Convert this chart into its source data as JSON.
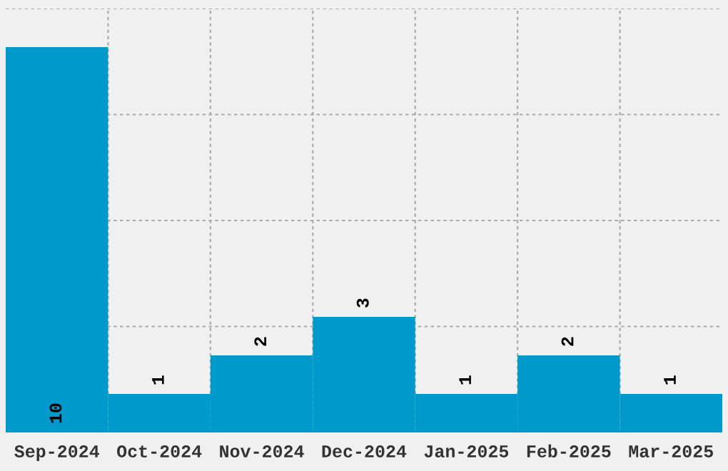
{
  "chart_data": {
    "type": "bar",
    "categories": [
      "Sep-2024",
      "Oct-2024",
      "Nov-2024",
      "Dec-2024",
      "Jan-2025",
      "Feb-2025",
      "Mar-2025"
    ],
    "values": [
      10,
      1,
      2,
      3,
      1,
      2,
      1
    ],
    "color": "#0099cc",
    "ylim": [
      0,
      11
    ],
    "tick_labels": "x",
    "grid": true,
    "data_labels": true
  }
}
